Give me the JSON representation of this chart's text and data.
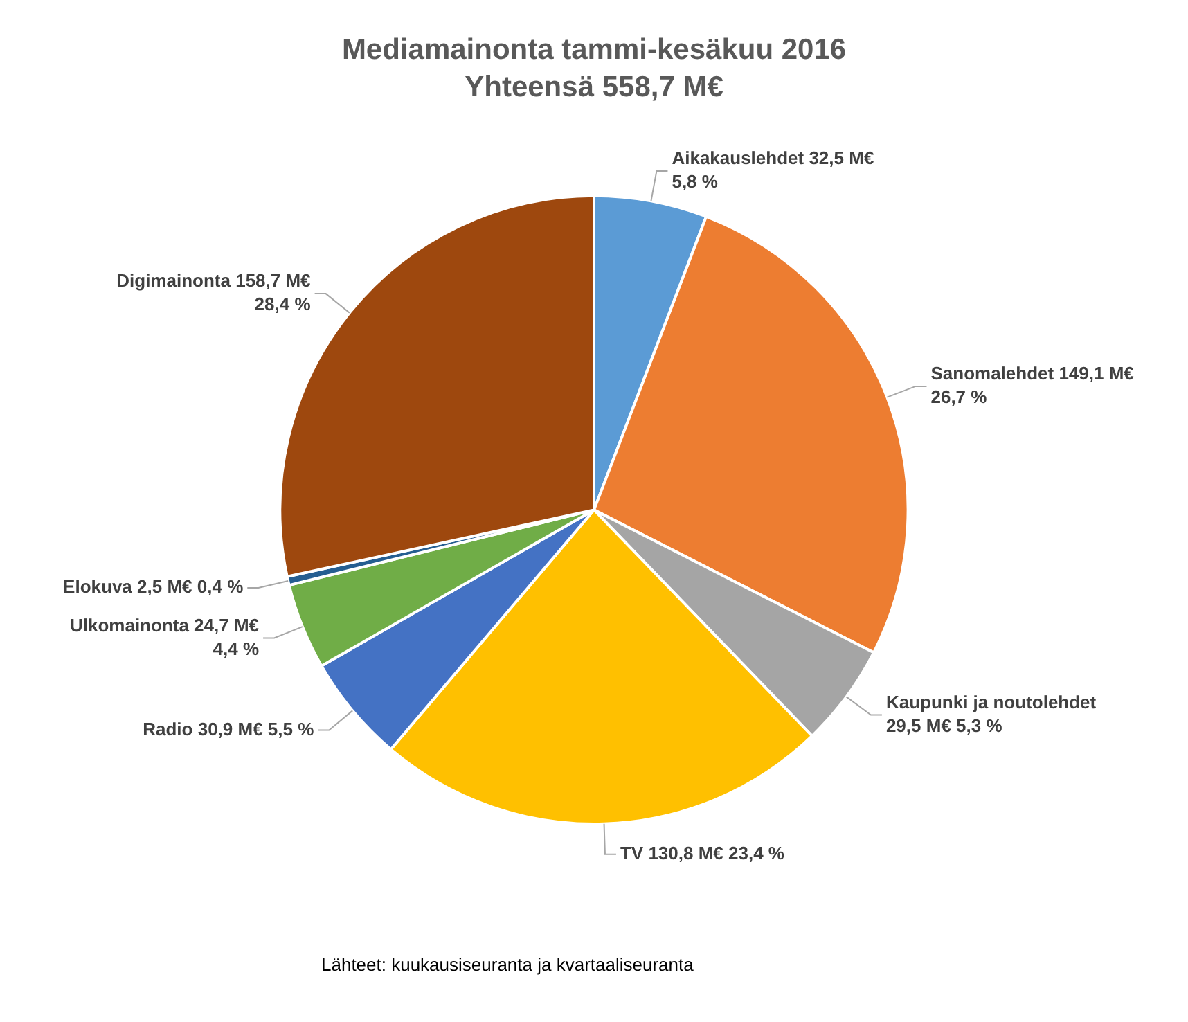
{
  "chart_data": {
    "type": "pie",
    "title": "Mediamainonta tammi-kesäkuu 2016",
    "subtitle": "Yhteensä 558,7 M€",
    "categories": [
      "Aikakauslehdet",
      "Sanomalehdet",
      "Kaupunki ja noutolehdet",
      "TV",
      "Radio",
      "Ulkomainonta",
      "Elokuva",
      "Digimainonta"
    ],
    "values": [
      32.5,
      149.1,
      29.5,
      130.8,
      30.9,
      24.7,
      2.5,
      158.7
    ],
    "value_labels": [
      "32,5 M€ 5,8 %",
      "149,1 M€ 26,7 %",
      "29,5 M€ 5,3 %",
      "130,8 M€ 23,4 %",
      "30,9 M€ 5,5 %",
      "24,7 M€ 4,4 %",
      "2,5 M€ 0,4 %",
      "158,7 M€ 28,4 %"
    ],
    "colors": [
      "#5b9bd5",
      "#ed7d31",
      "#a5a5a5",
      "#ffc000",
      "#4472c4",
      "#70ad47",
      "#255e91",
      "#9e480e"
    ],
    "legend": false,
    "annotations": [
      "Lähteet: kuukausiseuranta ja kvartaaliseuranta"
    ]
  }
}
